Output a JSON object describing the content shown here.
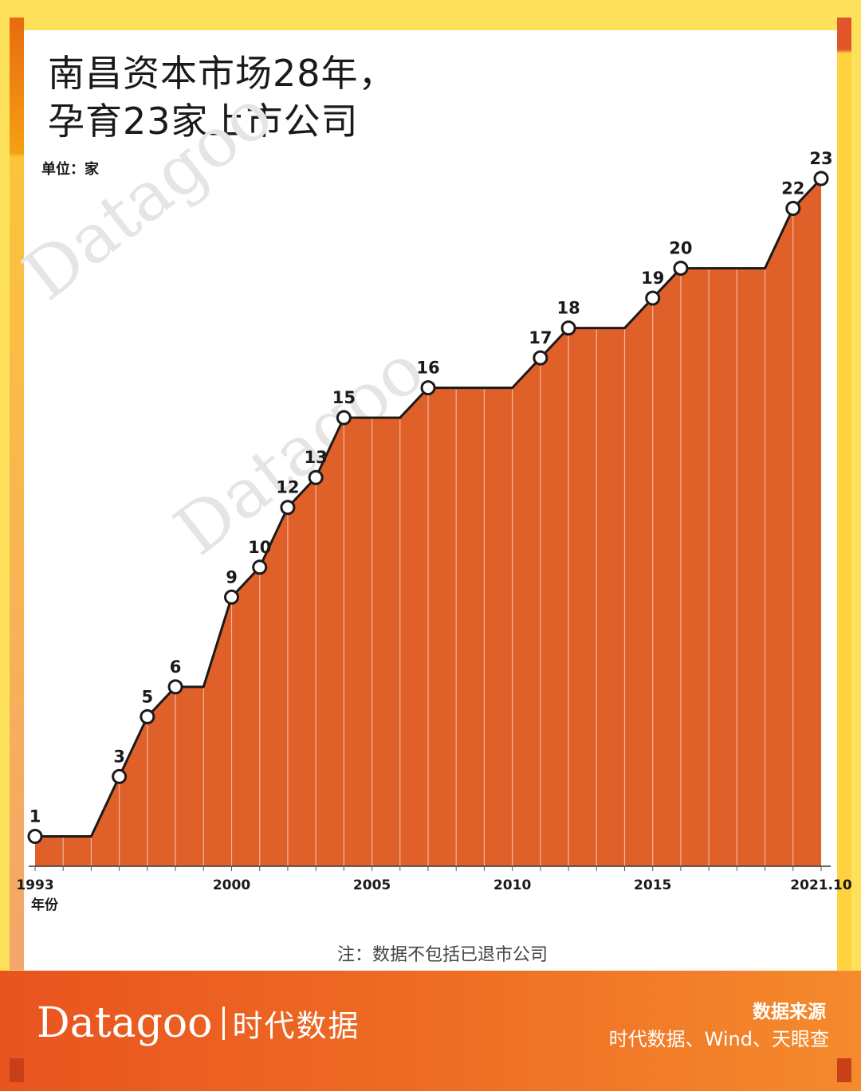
{
  "title_lines": [
    "南昌资本市场28年，",
    "孕育23家上市公司"
  ],
  "unit_label": "单位：家",
  "note": "注：数据不包括已退市公司",
  "footer": {
    "brand_en": "Datagoo",
    "brand_cn": "时代数据",
    "source_title": "数据来源",
    "source_text": "时代数据、Wind、天眼查"
  },
  "colors": {
    "area": "#E0602A",
    "line": "#1A1A1A",
    "frame_yellow": "#FEE15A",
    "footer": "#EE6C24"
  },
  "chart_data": {
    "type": "area",
    "title": "南昌资本市场28年，孕育23家上市公司",
    "ylabel": "单位：家",
    "xlabel": "年份",
    "x_tick_labels": [
      "1993",
      "2000",
      "2005",
      "2010",
      "2015",
      "2021.10"
    ],
    "x_tick_values": [
      1993,
      2000,
      2005,
      2010,
      2015,
      2021
    ],
    "x": [
      1993,
      1994,
      1995,
      1996,
      1997,
      1998,
      1999,
      2000,
      2001,
      2002,
      2003,
      2004,
      2005,
      2006,
      2007,
      2008,
      2009,
      2010,
      2011,
      2012,
      2013,
      2014,
      2015,
      2016,
      2017,
      2018,
      2019,
      2020,
      2021
    ],
    "values": [
      1,
      1,
      1,
      3,
      5,
      6,
      6,
      9,
      10,
      12,
      13,
      15,
      15,
      15,
      16,
      16,
      16,
      16,
      17,
      18,
      18,
      18,
      19,
      20,
      20,
      20,
      20,
      22,
      23
    ],
    "labeled_points": [
      {
        "x": 1993,
        "value": 1
      },
      {
        "x": 1996,
        "value": 3
      },
      {
        "x": 1997,
        "value": 5
      },
      {
        "x": 1998,
        "value": 6
      },
      {
        "x": 2000,
        "value": 9
      },
      {
        "x": 2001,
        "value": 10
      },
      {
        "x": 2002,
        "value": 12
      },
      {
        "x": 2003,
        "value": 13
      },
      {
        "x": 2004,
        "value": 15
      },
      {
        "x": 2007,
        "value": 16
      },
      {
        "x": 2011,
        "value": 17
      },
      {
        "x": 2012,
        "value": 18
      },
      {
        "x": 2015,
        "value": 19
      },
      {
        "x": 2016,
        "value": 20
      },
      {
        "x": 2020,
        "value": 22
      },
      {
        "x": 2021,
        "value": 23
      }
    ],
    "ylim": [
      0,
      24
    ],
    "grid": false,
    "legend": "none"
  }
}
